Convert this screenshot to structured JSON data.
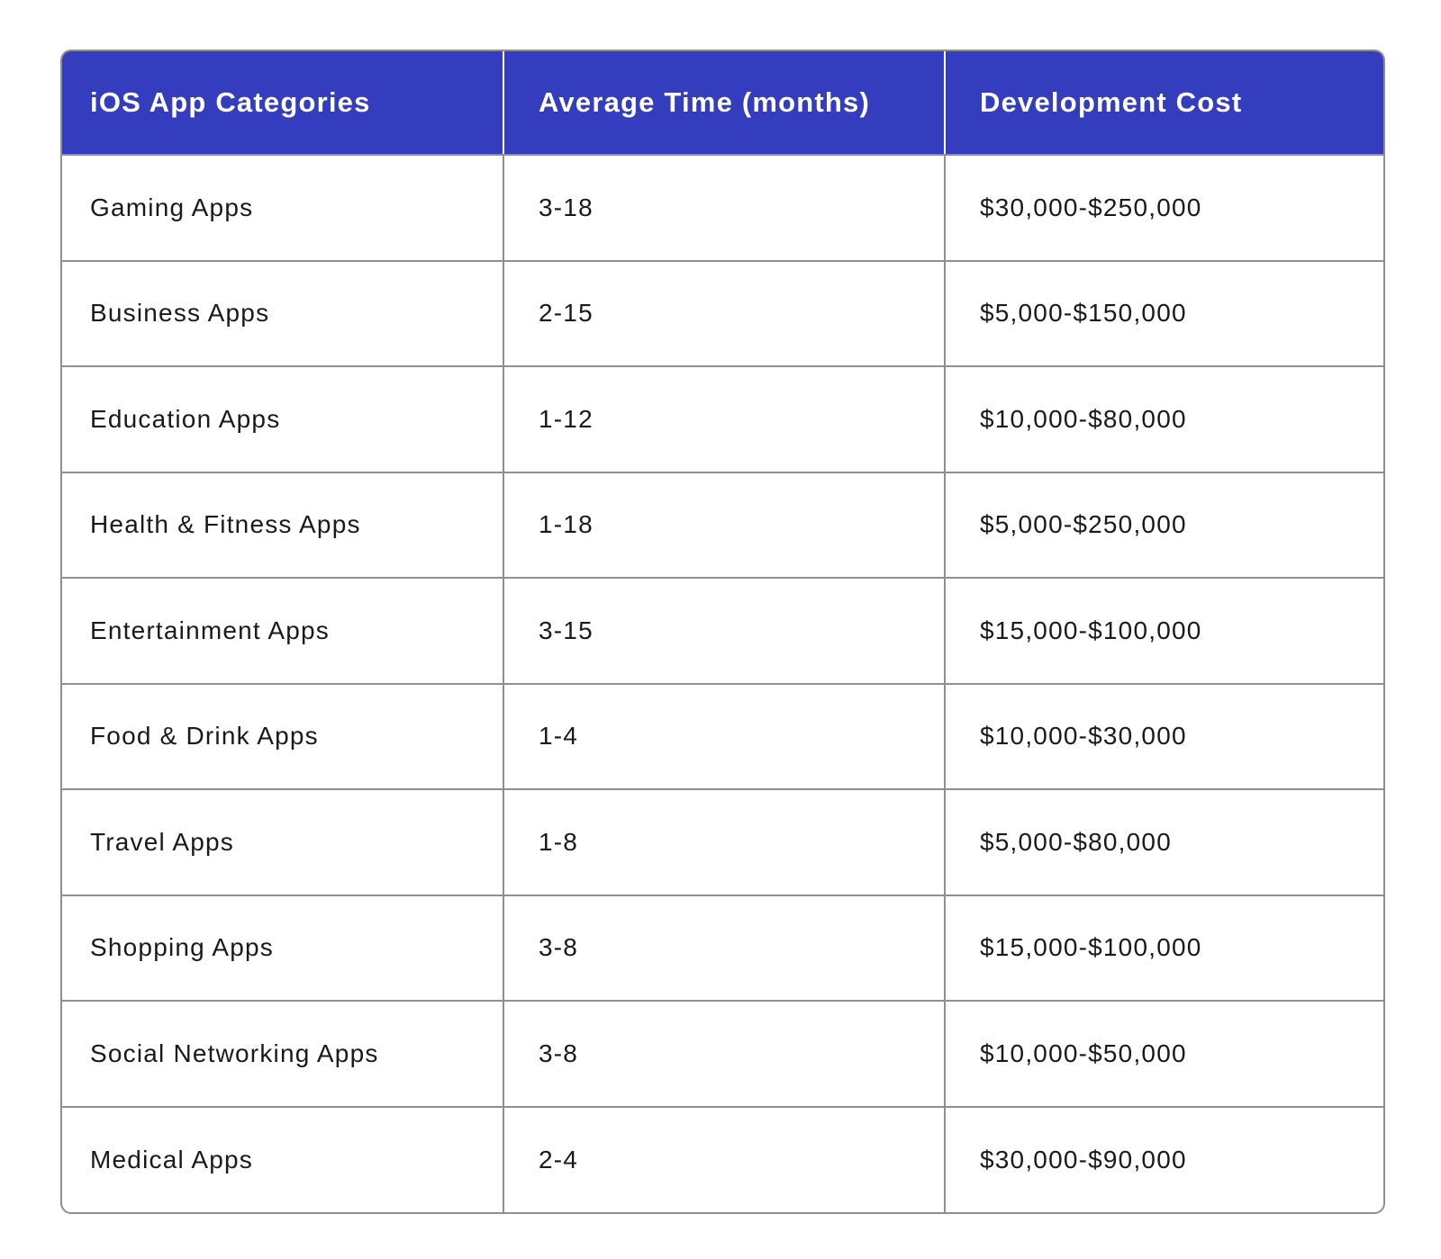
{
  "table": {
    "headers": {
      "category": "iOS App Categories",
      "time": "Average Time (months)",
      "cost": "Development Cost"
    },
    "rows": [
      {
        "category": "Gaming Apps",
        "time": "3-18",
        "cost": "$30,000-$250,000"
      },
      {
        "category": "Business Apps",
        "time": "2-15",
        "cost": "$5,000-$150,000"
      },
      {
        "category": "Education Apps",
        "time": "1-12",
        "cost": "$10,000-$80,000"
      },
      {
        "category": "Health & Fitness Apps",
        "time": "1-18",
        "cost": "$5,000-$250,000"
      },
      {
        "category": "Entertainment Apps",
        "time": "3-15",
        "cost": "$15,000-$100,000"
      },
      {
        "category": "Food & Drink Apps",
        "time": "1-4",
        "cost": "$10,000-$30,000"
      },
      {
        "category": "Travel Apps",
        "time": "1-8",
        "cost": "$5,000-$80,000"
      },
      {
        "category": "Shopping Apps",
        "time": "3-8",
        "cost": "$15,000-$100,000"
      },
      {
        "category": "Social Networking Apps",
        "time": "3-8",
        "cost": "$10,000-$50,000"
      },
      {
        "category": "Medical Apps",
        "time": "2-4",
        "cost": "$30,000-$90,000"
      }
    ]
  },
  "colors": {
    "header_background": "#343dbd",
    "header_text": "#ffffff",
    "border": "#8f8f8f",
    "body_text": "#1a1a1a"
  }
}
